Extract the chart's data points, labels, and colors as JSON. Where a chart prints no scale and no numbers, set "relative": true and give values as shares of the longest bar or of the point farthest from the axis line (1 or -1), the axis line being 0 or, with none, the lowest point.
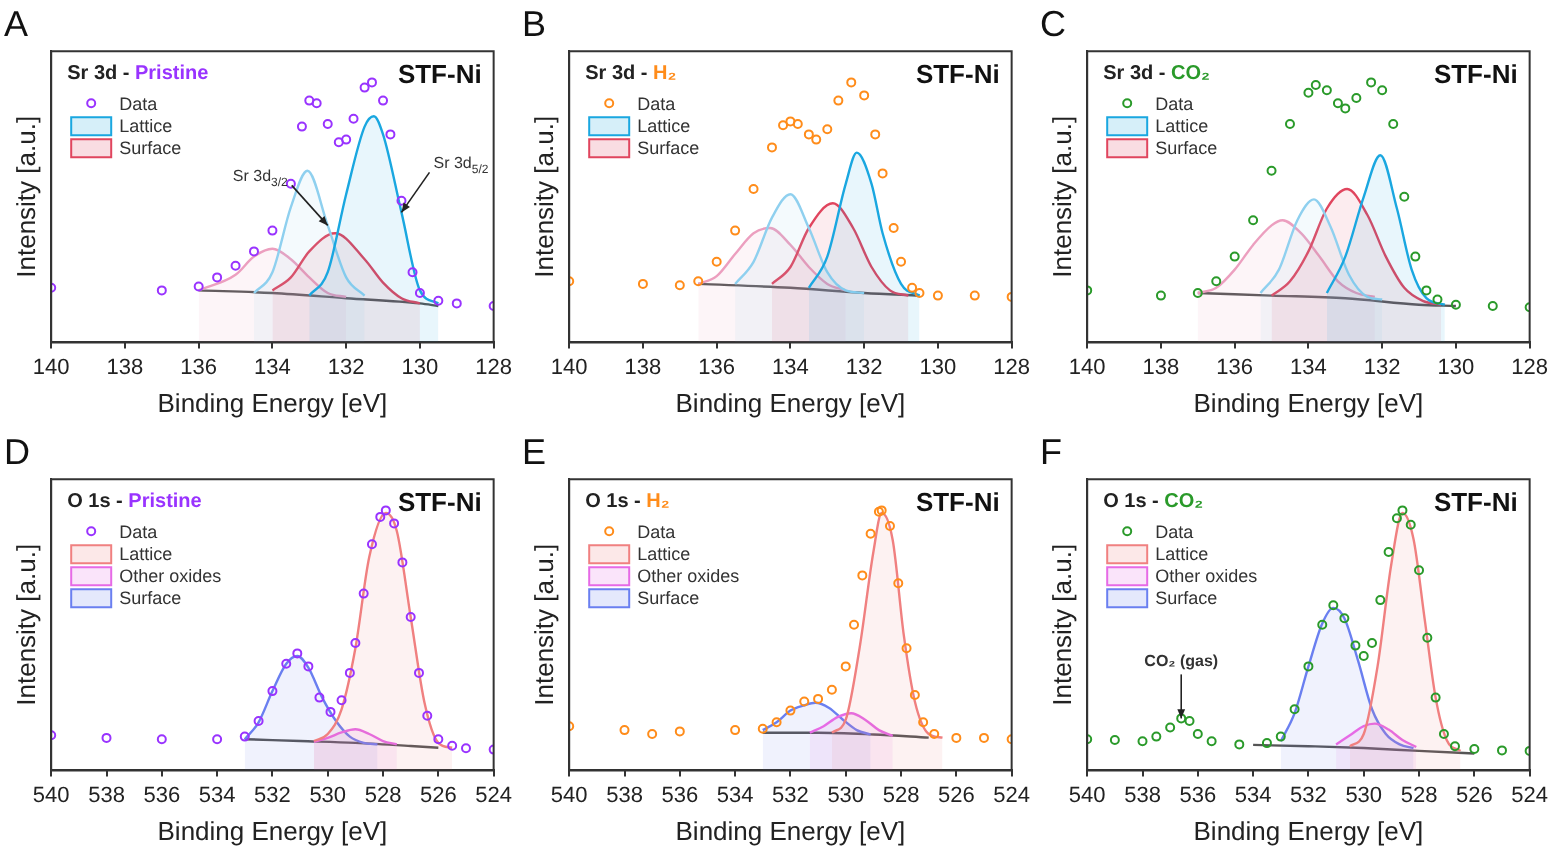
{
  "chart_data": [
    {
      "type": "area",
      "title": "A",
      "xlabel": "Binding Energy [eV]",
      "ylabel": "Intensity [a.u.]",
      "relative": true,
      "xlim": [
        140,
        128
      ],
      "xticks": [
        140,
        138,
        136,
        134,
        132,
        130,
        128
      ],
      "legend": "top left",
      "annotations": [
        "Sr 3d - ",
        "Pristine",
        {
          "text": "Sr 3d$_{3/2}$",
          "x": 132.5,
          "y": 0.45
        },
        {
          "text": "Sr 3d$_{5/2}$",
          "x": 130.5,
          "y": 0.5
        },
        "STF-Ni"
      ],
      "series": [
        {
          "name": "Data",
          "type": "scatter",
          "marker": "circle",
          "color": "#9933ff",
          "x": [
            140,
            137,
            136,
            135.5,
            135,
            134.5,
            134,
            133.5,
            133.2,
            133,
            132.8,
            132.5,
            132.2,
            132,
            131.8,
            131.5,
            131.3,
            131,
            130.8,
            130.5,
            130.2,
            130,
            129.5,
            129,
            128
          ],
          "values": [
            0.21,
            0.2,
            0.215,
            0.25,
            0.295,
            0.35,
            0.43,
            0.61,
            0.83,
            0.93,
            0.92,
            0.84,
            0.77,
            0.78,
            0.86,
            0.98,
            1,
            0.93,
            0.8,
            0.545,
            0.27,
            0.19,
            0.16,
            0.15,
            0.14
          ]
        },
        {
          "name": "Lattice",
          "color": "#1aa7e0",
          "x": [
            133,
            132.5,
            132,
            131.5,
            131.25,
            131,
            130.5,
            130,
            129.5
          ],
          "values": [
            0.18,
            0.27,
            0.57,
            0.83,
            0.87,
            0.8,
            0.5,
            0.2,
            0.15
          ]
        },
        {
          "color": "#8fd0ef",
          "x": [
            134.5,
            134,
            133.5,
            133.05,
            132.5,
            132,
            131.5
          ],
          "values": [
            0.19,
            0.27,
            0.52,
            0.66,
            0.45,
            0.25,
            0.18
          ]
        },
        {
          "name": "Surface",
          "color": "#e0455e",
          "x": [
            134,
            133.5,
            133,
            132.3,
            131.5,
            131,
            130.5,
            130
          ],
          "values": [
            0.2,
            0.25,
            0.35,
            0.42,
            0.32,
            0.23,
            0.17,
            0.15
          ]
        },
        {
          "color": "#ec9fbf",
          "x": [
            136,
            135,
            134.5,
            134,
            133.5,
            133,
            132.5,
            132
          ],
          "values": [
            0.2,
            0.26,
            0.33,
            0.36,
            0.32,
            0.25,
            0.19,
            0.175
          ]
        },
        {
          "type": "line",
          "color": "#555555",
          "x": [
            136,
            134,
            132,
            130,
            129.5
          ],
          "values": [
            0.2,
            0.19,
            0.17,
            0.15,
            0.14
          ]
        }
      ]
    },
    {
      "type": "area",
      "title": "B",
      "xlabel": "Binding Energy [eV]",
      "ylabel": "Intensity [a.u.]",
      "relative": true,
      "xlim": [
        140,
        128
      ],
      "xticks": [
        140,
        138,
        136,
        134,
        132,
        130,
        128
      ],
      "legend": "top left",
      "annotations": [
        "Sr 3d - ",
        "H₂",
        "STF-Ni"
      ],
      "series": [
        {
          "name": "Data",
          "type": "scatter",
          "marker": "circle",
          "color": "#ff8c1a",
          "x": [
            140,
            138,
            137,
            136.5,
            136,
            135.5,
            135,
            134.5,
            134.2,
            134,
            133.8,
            133.5,
            133.3,
            133,
            132.7,
            132.35,
            132,
            131.7,
            131.5,
            131.2,
            131,
            130.7,
            130.5,
            130,
            129,
            128
          ],
          "values": [
            0.235,
            0.225,
            0.22,
            0.235,
            0.31,
            0.43,
            0.59,
            0.75,
            0.835,
            0.85,
            0.84,
            0.8,
            0.78,
            0.82,
            0.93,
            1,
            0.95,
            0.8,
            0.65,
            0.44,
            0.31,
            0.21,
            0.19,
            0.18,
            0.18,
            0.175
          ]
        },
        {
          "name": "Lattice",
          "color": "#1aa7e0",
          "x": [
            133.5,
            133,
            132.5,
            132.2,
            131.8,
            131.5,
            131,
            130.5
          ],
          "values": [
            0.21,
            0.33,
            0.61,
            0.73,
            0.61,
            0.42,
            0.225,
            0.18
          ]
        },
        {
          "color": "#8fd0ef",
          "x": [
            135.5,
            135,
            134.5,
            134,
            133.5,
            133,
            132.5,
            132
          ],
          "values": [
            0.225,
            0.31,
            0.48,
            0.57,
            0.44,
            0.27,
            0.2,
            0.19
          ]
        },
        {
          "name": "Surface",
          "color": "#e0455e",
          "x": [
            134.5,
            134,
            133.5,
            132.85,
            132.3,
            131.8,
            131.3,
            130.8
          ],
          "values": [
            0.225,
            0.29,
            0.44,
            0.535,
            0.44,
            0.29,
            0.2,
            0.18
          ]
        },
        {
          "color": "#ec9fbf",
          "x": [
            136.5,
            136,
            135.5,
            135,
            134.55,
            134,
            133.5,
            133,
            132.5
          ],
          "values": [
            0.225,
            0.255,
            0.34,
            0.42,
            0.44,
            0.375,
            0.29,
            0.225,
            0.2
          ]
        },
        {
          "type": "line",
          "color": "#555555",
          "x": [
            136.5,
            134,
            132,
            130.5
          ],
          "values": [
            0.225,
            0.21,
            0.19,
            0.18
          ]
        }
      ]
    },
    {
      "type": "area",
      "title": "C",
      "xlabel": "Binding Energy [eV]",
      "ylabel": "Intensity [a.u.]",
      "relative": true,
      "xlim": [
        140,
        128
      ],
      "xticks": [
        140,
        138,
        136,
        134,
        132,
        130,
        128
      ],
      "legend": "top left",
      "annotations": [
        "Sr 3d - ",
        "CO₂",
        "STF-Ni"
      ],
      "series": [
        {
          "name": "Data",
          "type": "scatter",
          "marker": "circle",
          "color": "#2a9a2a",
          "x": [
            140,
            138,
            137,
            136.5,
            136,
            135.5,
            135,
            134.5,
            134,
            133.8,
            133.5,
            133.2,
            133,
            132.7,
            132.3,
            132,
            131.7,
            131.4,
            131.1,
            130.8,
            130.5,
            130,
            129,
            128
          ],
          "values": [
            0.2,
            0.18,
            0.19,
            0.235,
            0.33,
            0.47,
            0.66,
            0.84,
            0.96,
            0.99,
            0.97,
            0.92,
            0.9,
            0.94,
            1,
            0.97,
            0.84,
            0.56,
            0.33,
            0.2,
            0.165,
            0.145,
            0.14,
            0.135
          ]
        },
        {
          "name": "Lattice",
          "color": "#1aa7e0",
          "x": [
            133.5,
            133,
            132.5,
            132.05,
            131.6,
            131.2,
            130.8,
            130.3
          ],
          "values": [
            0.19,
            0.33,
            0.56,
            0.72,
            0.515,
            0.28,
            0.17,
            0.145
          ]
        },
        {
          "color": "#8fd0ef",
          "x": [
            135.3,
            134.8,
            134.3,
            133.85,
            133.4,
            132.9,
            132.4,
            132
          ],
          "values": [
            0.19,
            0.28,
            0.47,
            0.55,
            0.445,
            0.26,
            0.175,
            0.165
          ]
        },
        {
          "name": "Surface",
          "color": "#e0455e",
          "x": [
            135,
            134.5,
            134,
            133.5,
            132.95,
            132.4,
            131.9,
            131.4,
            130.9,
            130.4
          ],
          "values": [
            0.18,
            0.235,
            0.35,
            0.515,
            0.59,
            0.49,
            0.33,
            0.21,
            0.16,
            0.145
          ]
        },
        {
          "color": "#ec9fbf",
          "x": [
            137,
            136.5,
            136,
            135.5,
            135,
            134.7,
            134.2,
            133.7,
            133.2,
            132.7,
            132.2
          ],
          "values": [
            0.19,
            0.21,
            0.28,
            0.375,
            0.45,
            0.47,
            0.42,
            0.33,
            0.235,
            0.19,
            0.175
          ]
        },
        {
          "type": "line",
          "color": "#555555",
          "x": [
            137,
            135,
            133,
            131,
            130
          ],
          "values": [
            0.19,
            0.18,
            0.17,
            0.145,
            0.14
          ]
        }
      ]
    },
    {
      "type": "area",
      "title": "D",
      "xlabel": "Binding Energy [eV]",
      "ylabel": "Intensity [a.u.]",
      "relative": true,
      "xlim": [
        540,
        524
      ],
      "xticks": [
        540,
        538,
        536,
        534,
        532,
        530,
        528,
        526,
        524
      ],
      "legend": "top left",
      "annotations": [
        "O 1s - ",
        "Pristine",
        "STF-Ni"
      ],
      "series": [
        {
          "name": "Data",
          "type": "scatter",
          "marker": "circle",
          "color": "#9933ff",
          "x": [
            540,
            538,
            536,
            534,
            533,
            532.5,
            532,
            531.5,
            531.1,
            530.7,
            530.3,
            529.9,
            529.5,
            529.2,
            529,
            528.7,
            528.4,
            528.1,
            527.9,
            527.6,
            527.3,
            527,
            526.7,
            526.4,
            526,
            525.5,
            525,
            524
          ],
          "values": [
            0.135,
            0.125,
            0.12,
            0.12,
            0.13,
            0.19,
            0.305,
            0.41,
            0.45,
            0.4,
            0.28,
            0.225,
            0.27,
            0.375,
            0.49,
            0.68,
            0.87,
            0.975,
            1,
            0.95,
            0.8,
            0.59,
            0.375,
            0.21,
            0.12,
            0.095,
            0.085,
            0.08
          ]
        },
        {
          "name": "Lattice",
          "color": "#f08080",
          "x": [
            530.5,
            530,
            529.5,
            529,
            528.5,
            527.9,
            527.5,
            527,
            526.5,
            526,
            525.5
          ],
          "values": [
            0.113,
            0.14,
            0.235,
            0.47,
            0.82,
            0.99,
            0.92,
            0.59,
            0.26,
            0.106,
            0.087
          ]
        },
        {
          "name": "Other oxides",
          "color": "#e66ae6",
          "x": [
            530.5,
            530,
            529.5,
            529,
            528.5,
            528,
            527.5
          ],
          "values": [
            0.11,
            0.125,
            0.146,
            0.158,
            0.14,
            0.113,
            0.1
          ]
        },
        {
          "name": "Surface",
          "color": "#6a7ff0",
          "x": [
            533,
            532.5,
            532,
            531.5,
            531.1,
            530.7,
            530.2,
            529.7,
            529.2,
            528.7,
            528.2
          ],
          "values": [
            0.12,
            0.185,
            0.305,
            0.41,
            0.44,
            0.395,
            0.28,
            0.19,
            0.13,
            0.106,
            0.1
          ]
        },
        {
          "type": "line",
          "color": "#555555",
          "x": [
            533,
            531,
            529,
            527,
            526
          ],
          "values": [
            0.12,
            0.113,
            0.106,
            0.094,
            0.087
          ]
        }
      ]
    },
    {
      "type": "area",
      "title": "E",
      "xlabel": "Binding Energy [eV]",
      "ylabel": "Intensity [a.u.]",
      "relative": true,
      "xlim": [
        540,
        524
      ],
      "xticks": [
        540,
        538,
        536,
        534,
        532,
        530,
        528,
        526,
        524
      ],
      "legend": "top left",
      "annotations": [
        "O 1s - ",
        "H₂",
        "STF-Ni"
      ],
      "series": [
        {
          "name": "Data",
          "type": "scatter",
          "marker": "circle",
          "color": "#ff8c1a",
          "x": [
            540,
            538,
            537,
            536,
            534,
            533,
            532.5,
            532,
            531.5,
            531,
            530.5,
            530,
            529.7,
            529.4,
            529.1,
            528.8,
            528.7,
            528.4,
            528.1,
            527.8,
            527.5,
            527.2,
            526.8,
            526,
            525,
            524
          ],
          "values": [
            0.17,
            0.155,
            0.14,
            0.15,
            0.155,
            0.16,
            0.185,
            0.23,
            0.265,
            0.275,
            0.31,
            0.4,
            0.56,
            0.75,
            0.91,
            0.995,
            1,
            0.94,
            0.72,
            0.47,
            0.29,
            0.185,
            0.14,
            0.125,
            0.125,
            0.12
          ]
        },
        {
          "name": "Lattice",
          "color": "#f08080",
          "x": [
            530.5,
            530,
            529.5,
            529,
            528.7,
            528.3,
            527.9,
            527.5,
            527,
            526.5
          ],
          "values": [
            0.145,
            0.195,
            0.47,
            0.84,
            0.99,
            0.885,
            0.52,
            0.265,
            0.14,
            0.126
          ]
        },
        {
          "name": "Other oxides",
          "color": "#e66ae6",
          "x": [
            531.3,
            530.8,
            530.3,
            529.8,
            529.3,
            528.8,
            528.3
          ],
          "values": [
            0.145,
            0.17,
            0.205,
            0.22,
            0.195,
            0.155,
            0.133
          ]
        },
        {
          "name": "Surface",
          "color": "#6a7ff0",
          "x": [
            533,
            532.5,
            532,
            531.5,
            531.1,
            530.6,
            530.1,
            529.6,
            529.1
          ],
          "values": [
            0.155,
            0.185,
            0.23,
            0.25,
            0.26,
            0.24,
            0.195,
            0.155,
            0.138
          ]
        },
        {
          "type": "line",
          "color": "#555555",
          "x": [
            533,
            531,
            529,
            527
          ],
          "values": [
            0.145,
            0.145,
            0.138,
            0.126
          ]
        }
      ]
    },
    {
      "type": "area",
      "title": "F",
      "xlabel": "Binding Energy [eV]",
      "ylabel": "Intensity [a.u.]",
      "relative": true,
      "xlim": [
        540,
        524
      ],
      "xticks": [
        540,
        538,
        536,
        534,
        532,
        530,
        528,
        526,
        524
      ],
      "legend": "top left",
      "annotations": [
        "O 1s - ",
        "CO₂",
        {
          "text": "CO₂ (gas)",
          "x": 536.6,
          "y": 0.2
        },
        "STF-Ni"
      ],
      "series": [
        {
          "name": "Data",
          "type": "scatter",
          "marker": "circle",
          "color": "#2a9a2a",
          "x": [
            540,
            539,
            538,
            537.5,
            537,
            536.6,
            536.3,
            536,
            535.5,
            534.5,
            533.5,
            533,
            532.5,
            532,
            531.5,
            531.1,
            530.7,
            530.3,
            530,
            529.7,
            529.4,
            529.1,
            528.8,
            528.6,
            528.3,
            528,
            527.7,
            527.4,
            527.1,
            526.7,
            526,
            525,
            524
          ],
          "values": [
            0.12,
            0.117,
            0.112,
            0.13,
            0.165,
            0.2,
            0.19,
            0.14,
            0.112,
            0.1,
            0.105,
            0.13,
            0.235,
            0.4,
            0.56,
            0.635,
            0.585,
            0.48,
            0.44,
            0.49,
            0.655,
            0.84,
            0.97,
            1,
            0.945,
            0.77,
            0.51,
            0.28,
            0.14,
            0.093,
            0.082,
            0.077,
            0.075
          ]
        },
        {
          "name": "Lattice",
          "color": "#f08080",
          "x": [
            530.5,
            530,
            529.5,
            529,
            528.6,
            528.2,
            527.8,
            527.4,
            527,
            526.5
          ],
          "values": [
            0.093,
            0.14,
            0.4,
            0.795,
            0.99,
            0.89,
            0.585,
            0.28,
            0.117,
            0.075
          ]
        },
        {
          "name": "Other oxides",
          "color": "#e66ae6",
          "x": [
            531,
            530.5,
            530,
            529.6,
            529.1,
            528.6,
            528.1
          ],
          "values": [
            0.1,
            0.135,
            0.17,
            0.18,
            0.157,
            0.117,
            0.09
          ]
        },
        {
          "name": "Surface",
          "color": "#6a7ff0",
          "x": [
            533,
            532.5,
            532,
            531.5,
            531.1,
            530.7,
            530.2,
            529.7,
            529.2,
            528.7,
            528.2
          ],
          "values": [
            0.112,
            0.22,
            0.4,
            0.565,
            0.625,
            0.585,
            0.42,
            0.235,
            0.14,
            0.1,
            0.086
          ]
        },
        {
          "type": "line",
          "color": "#555555",
          "x": [
            534,
            532,
            530,
            528,
            526
          ],
          "values": [
            0.098,
            0.093,
            0.086,
            0.075,
            0.065
          ]
        }
      ]
    }
  ]
}
